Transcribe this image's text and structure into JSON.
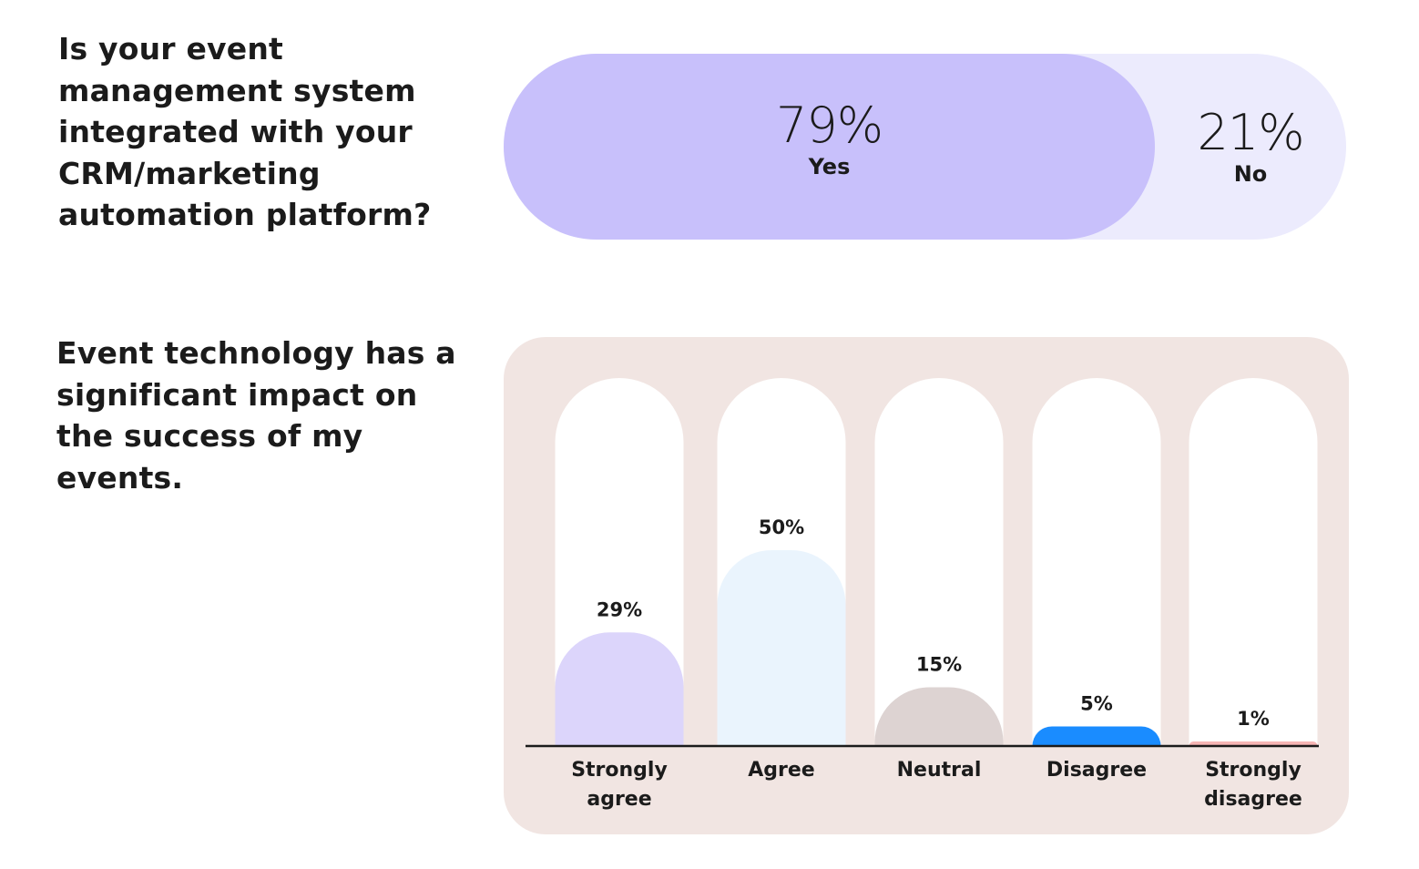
{
  "question1": {
    "text": "Is your event management system integrated with your CRM/marketing automation platform?"
  },
  "question2": {
    "text": "Event technology has a significant impact on the success of my events."
  },
  "chart_data": [
    {
      "type": "bar",
      "orientation": "horizontal-stacked",
      "categories": [
        "Yes",
        "No"
      ],
      "values": [
        79,
        21
      ],
      "value_labels": [
        "79%",
        "21%"
      ],
      "colors": [
        "#c8c0fb",
        "#ecebfd"
      ],
      "title": "",
      "xlabel": "",
      "ylabel": ""
    },
    {
      "type": "bar",
      "categories": [
        "Strongly agree",
        "Agree",
        "Neutral",
        "Disagree",
        "Strongly disagree"
      ],
      "category_lines": [
        [
          "Strongly",
          "agree"
        ],
        [
          "Agree"
        ],
        [
          "Neutral"
        ],
        [
          "Disagree"
        ],
        [
          "Strongly",
          "disagree"
        ]
      ],
      "values": [
        29,
        50,
        15,
        5,
        1
      ],
      "value_labels": [
        "29%",
        "50%",
        "15%",
        "5%",
        "1%"
      ],
      "colors": [
        "#dcd5fb",
        "#eaf4fd",
        "#ddd3d2",
        "#1a8cff",
        "#f6b5b4"
      ],
      "track_color": "#ffffff",
      "panel_color": "#f1e5e2",
      "ylim": [
        0,
        100
      ],
      "title": "",
      "xlabel": "",
      "ylabel": "",
      "grid": false,
      "legend": "none"
    }
  ]
}
